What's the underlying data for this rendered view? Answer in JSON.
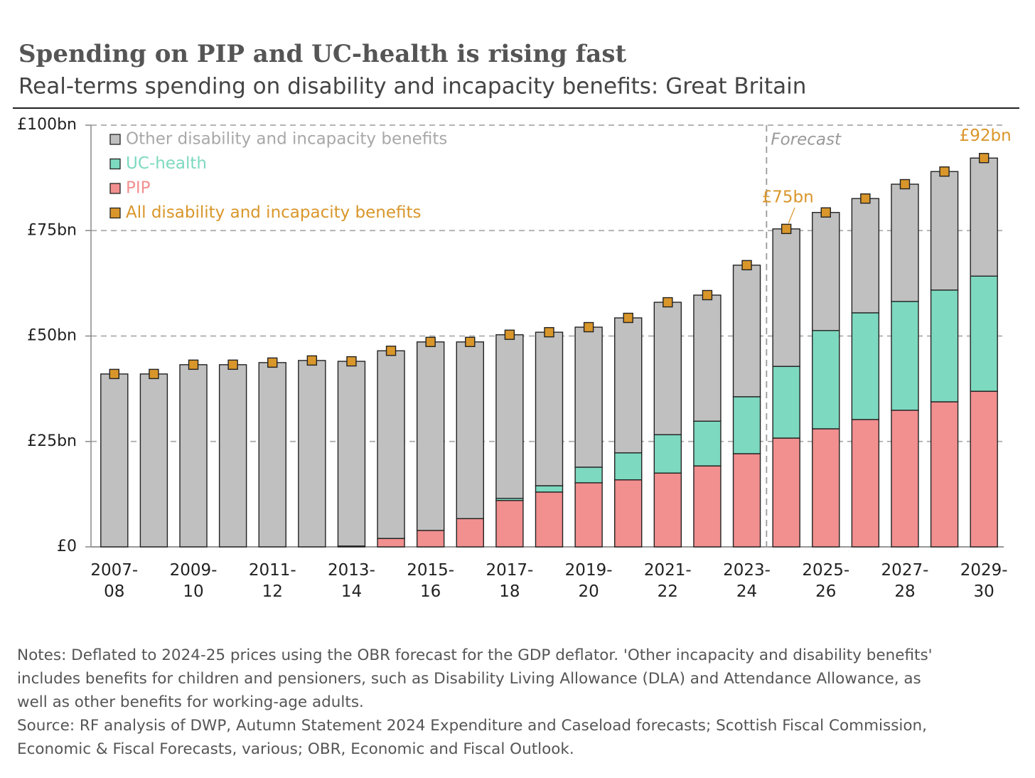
{
  "chart_data": {
    "type": "bar",
    "stacked": true,
    "title": "Spending on PIP and UC-health is rising fast",
    "subtitle": "Real-terms spending on disability and incapacity benefits: Great Britain",
    "forecast_label": "Forecast",
    "categories": [
      "2007-\n08",
      null,
      "2009-\n10",
      null,
      "2011-\n12",
      null,
      "2013-\n14",
      null,
      "2015-\n16",
      null,
      "2017-\n18",
      null,
      "2019-\n20",
      null,
      "2021-\n22",
      null,
      "2023-\n24",
      null,
      "2025-\n26",
      null,
      "2027-\n28",
      null,
      "2029-\n30"
    ],
    "series": [
      {
        "name": "PIP",
        "color": "#f28f8f",
        "values": [
          0,
          0,
          0,
          0,
          0,
          0,
          0.2,
          2.0,
          3.9,
          6.7,
          11.0,
          13.0,
          15.2,
          15.9,
          17.5,
          19.2,
          22.1,
          25.8,
          28.0,
          30.2,
          32.4,
          34.4,
          36.9
        ]
      },
      {
        "name": "UC-health",
        "color": "#7dd9c0",
        "values": [
          0,
          0,
          0,
          0,
          0,
          0,
          0,
          0,
          0,
          0,
          0.5,
          1.5,
          3.7,
          6.4,
          9.1,
          10.6,
          13.5,
          17.0,
          23.3,
          25.3,
          25.8,
          26.5,
          27.3
        ]
      },
      {
        "name": "Other disability and incapacity benefits",
        "color": "#c0c0c0",
        "values": [
          41.0,
          41.0,
          43.2,
          43.2,
          43.7,
          44.2,
          43.8,
          44.5,
          44.7,
          41.9,
          38.8,
          36.4,
          33.2,
          32.0,
          31.4,
          29.9,
          31.2,
          32.6,
          28.0,
          27.1,
          27.8,
          28.1,
          28.0
        ]
      },
      {
        "name": "All disability and incapacity benefits",
        "color": "#d9962a",
        "type": "scatter",
        "values": [
          41.0,
          41.0,
          43.2,
          43.2,
          43.7,
          44.2,
          44.0,
          46.5,
          48.6,
          48.6,
          50.3,
          50.9,
          52.1,
          54.3,
          58.0,
          59.7,
          66.8,
          75.4,
          79.3,
          82.6,
          86.0,
          89.0,
          92.2
        ],
        "value_labels": [
          null,
          null,
          null,
          null,
          null,
          null,
          null,
          null,
          null,
          null,
          null,
          null,
          null,
          null,
          null,
          null,
          null,
          "£75bn",
          null,
          null,
          null,
          null,
          "£92bn"
        ]
      }
    ],
    "ylim": [
      0,
      100
    ],
    "yticks": [
      {
        "value": 0,
        "label": "£0"
      },
      {
        "value": 25,
        "label": "£25bn"
      },
      {
        "value": 50,
        "label": "£50bn"
      },
      {
        "value": 75,
        "label": "£75bn"
      },
      {
        "value": 100,
        "label": "£100bn"
      }
    ],
    "grid": true,
    "legend": "top-left",
    "notes": [
      "Notes: Deflated to 2024-25 prices using the OBR forecast for the GDP deflator. 'Other incapacity and disability benefits'",
      "includes benefits for children and pensioners, such as Disability Living Allowance (DLA) and Attendance Allowance, as",
      "well as other benefits for working-age adults."
    ],
    "source": [
      "Source: RF analysis of DWP, Autumn Statement 2024 Expenditure and Caseload forecasts; Scottish Fiscal Commission,",
      "Economic & Fiscal Forecasts, various; OBR, Economic and Fiscal Outlook."
    ]
  }
}
